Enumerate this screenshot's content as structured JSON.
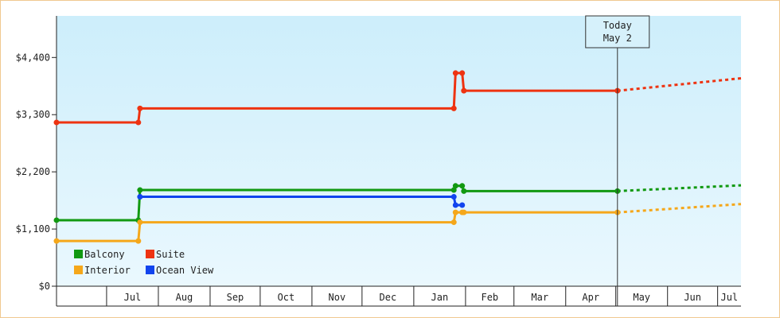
{
  "chart_data": {
    "type": "line",
    "title": "",
    "xlabel": "",
    "ylabel": "",
    "y_ticks": [
      "$0",
      "$1,100",
      "$2,200",
      "$3,300",
      "$4,400"
    ],
    "y_tick_values": [
      0,
      1100,
      2200,
      3300,
      4400
    ],
    "ylim": [
      0,
      5200
    ],
    "x_months": [
      "Jul",
      "Aug",
      "Sep",
      "Oct",
      "Nov",
      "Dec",
      "Jan",
      "Feb",
      "Mar",
      "Apr",
      "May",
      "Jun",
      "Jul"
    ],
    "xlim": [
      "2023-06-01",
      "2024-07-15"
    ],
    "month_boundaries": [
      "2023-06-01",
      "2023-07-01",
      "2023-08-01",
      "2023-09-01",
      "2023-10-01",
      "2023-11-01",
      "2023-12-01",
      "2024-01-01",
      "2024-02-01",
      "2024-03-01",
      "2024-04-01",
      "2024-05-01",
      "2024-06-01",
      "2024-07-01"
    ],
    "today": {
      "line1": "Today",
      "line2": "May 2",
      "date": "2024-05-02"
    },
    "grid": false,
    "legend_position": "bottom-left",
    "series": [
      {
        "name": "Suite",
        "color": "#ee3311",
        "points": [
          [
            "2023-06-01",
            3150
          ],
          [
            "2023-07-20",
            3150
          ],
          [
            "2023-07-21",
            3420
          ],
          [
            "2024-01-25",
            3420
          ],
          [
            "2024-01-26",
            4100
          ],
          [
            "2024-01-30",
            4100
          ],
          [
            "2024-01-31",
            3760
          ],
          [
            "2024-05-02",
            3760
          ]
        ],
        "projection": [
          [
            "2024-05-02",
            3760
          ],
          [
            "2024-07-15",
            4000
          ]
        ]
      },
      {
        "name": "Balcony",
        "color": "#119911",
        "points": [
          [
            "2023-06-01",
            1270
          ],
          [
            "2023-07-20",
            1270
          ],
          [
            "2023-07-21",
            1850
          ],
          [
            "2024-01-25",
            1850
          ],
          [
            "2024-01-26",
            1930
          ],
          [
            "2024-01-30",
            1930
          ],
          [
            "2024-01-31",
            1830
          ],
          [
            "2024-05-02",
            1830
          ]
        ],
        "projection": [
          [
            "2024-05-02",
            1830
          ],
          [
            "2024-07-15",
            1940
          ]
        ]
      },
      {
        "name": "Ocean View",
        "color": "#1144ee",
        "points": [
          [
            "2023-07-21",
            1720
          ],
          [
            "2024-01-25",
            1720
          ],
          [
            "2024-01-26",
            1560
          ],
          [
            "2024-01-30",
            1560
          ]
        ],
        "projection": []
      },
      {
        "name": "Interior",
        "color": "#f5a71a",
        "points": [
          [
            "2023-06-01",
            870
          ],
          [
            "2023-07-20",
            870
          ],
          [
            "2023-07-21",
            1230
          ],
          [
            "2024-01-25",
            1230
          ],
          [
            "2024-01-26",
            1420
          ],
          [
            "2024-01-30",
            1420
          ],
          [
            "2024-01-31",
            1420
          ],
          [
            "2024-05-02",
            1420
          ]
        ],
        "projection": [
          [
            "2024-05-02",
            1420
          ],
          [
            "2024-07-15",
            1580
          ]
        ]
      }
    ],
    "legend": [
      {
        "name": "Balcony",
        "color": "#119911"
      },
      {
        "name": "Suite",
        "color": "#ee3311"
      },
      {
        "name": "Interior",
        "color": "#f5a71a"
      },
      {
        "name": "Ocean View",
        "color": "#1144ee"
      }
    ]
  }
}
